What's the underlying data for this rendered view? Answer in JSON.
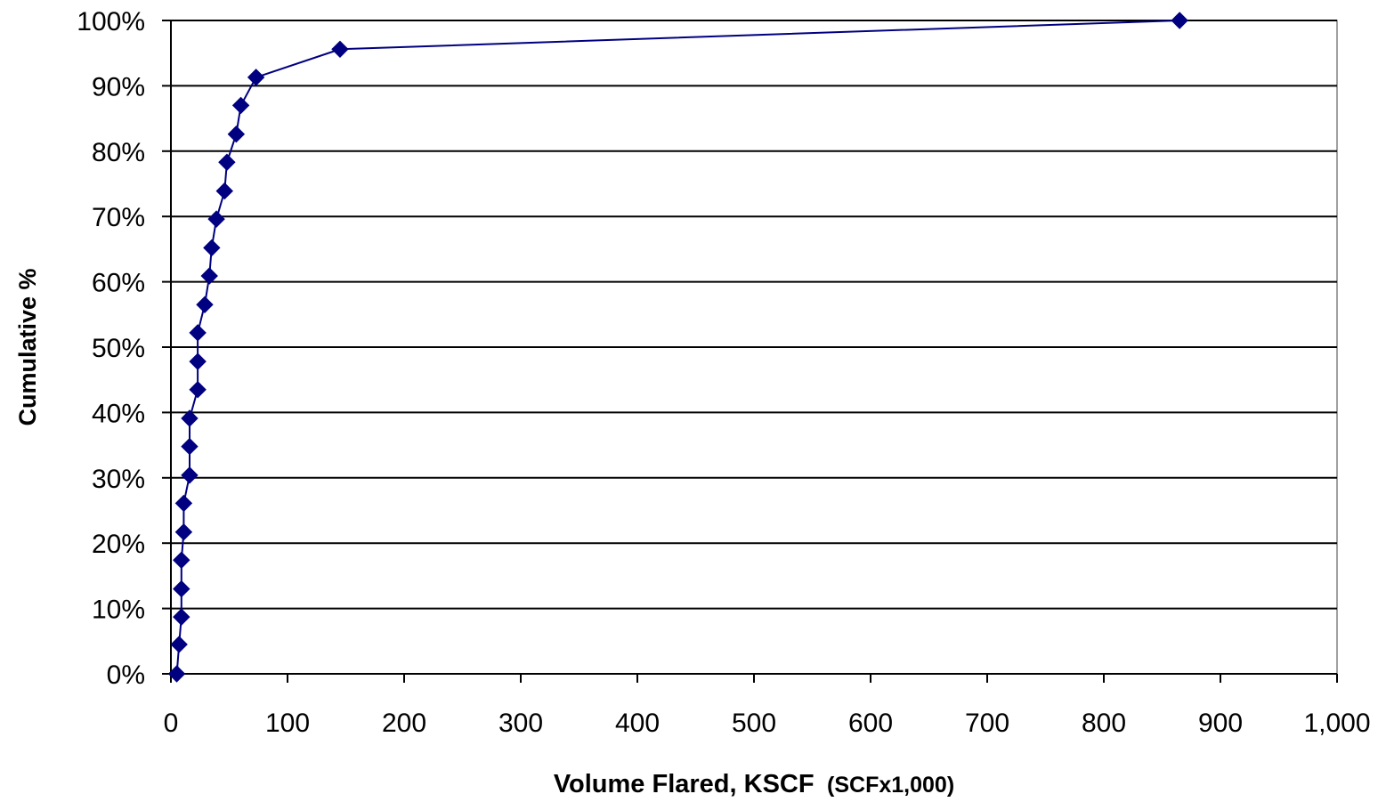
{
  "chart_data": {
    "type": "scatter",
    "title": "",
    "xlabel_main": "Volume Flared, KSCF",
    "xlabel_sub": "(SCFx1,000)",
    "ylabel": "Cumulative %",
    "xlim": [
      0,
      1000
    ],
    "ylim": [
      0,
      100
    ],
    "x_ticks": [
      0,
      100,
      200,
      300,
      400,
      500,
      600,
      700,
      800,
      900,
      1000
    ],
    "x_tick_labels": [
      "0",
      "100",
      "200",
      "300",
      "400",
      "500",
      "600",
      "700",
      "800",
      "900",
      "1,000"
    ],
    "y_ticks": [
      0,
      10,
      20,
      30,
      40,
      50,
      60,
      70,
      80,
      90,
      100
    ],
    "y_tick_labels": [
      "0%",
      "10%",
      "20%",
      "30%",
      "40%",
      "50%",
      "60%",
      "70%",
      "80%",
      "90%",
      "100%"
    ],
    "grid": "horizontal",
    "legend": "none",
    "series": [
      {
        "color": "#000080",
        "marker": "diamond",
        "line": true,
        "points": [
          {
            "x": 5,
            "y": 0
          },
          {
            "x": 7,
            "y": 4.5
          },
          {
            "x": 9,
            "y": 8.7
          },
          {
            "x": 9,
            "y": 13
          },
          {
            "x": 9,
            "y": 17.4
          },
          {
            "x": 11,
            "y": 21.7
          },
          {
            "x": 11,
            "y": 26.1
          },
          {
            "x": 16,
            "y": 30.4
          },
          {
            "x": 16,
            "y": 34.8
          },
          {
            "x": 16,
            "y": 39.1
          },
          {
            "x": 23,
            "y": 43.5
          },
          {
            "x": 23,
            "y": 47.8
          },
          {
            "x": 23,
            "y": 52.2
          },
          {
            "x": 29,
            "y": 56.5
          },
          {
            "x": 33,
            "y": 60.9
          },
          {
            "x": 35,
            "y": 65.2
          },
          {
            "x": 39,
            "y": 69.6
          },
          {
            "x": 46,
            "y": 73.9
          },
          {
            "x": 48,
            "y": 78.3
          },
          {
            "x": 56,
            "y": 82.6
          },
          {
            "x": 60,
            "y": 87
          },
          {
            "x": 73,
            "y": 91.3
          },
          {
            "x": 145,
            "y": 95.6
          },
          {
            "x": 865,
            "y": 100
          }
        ]
      }
    ]
  }
}
